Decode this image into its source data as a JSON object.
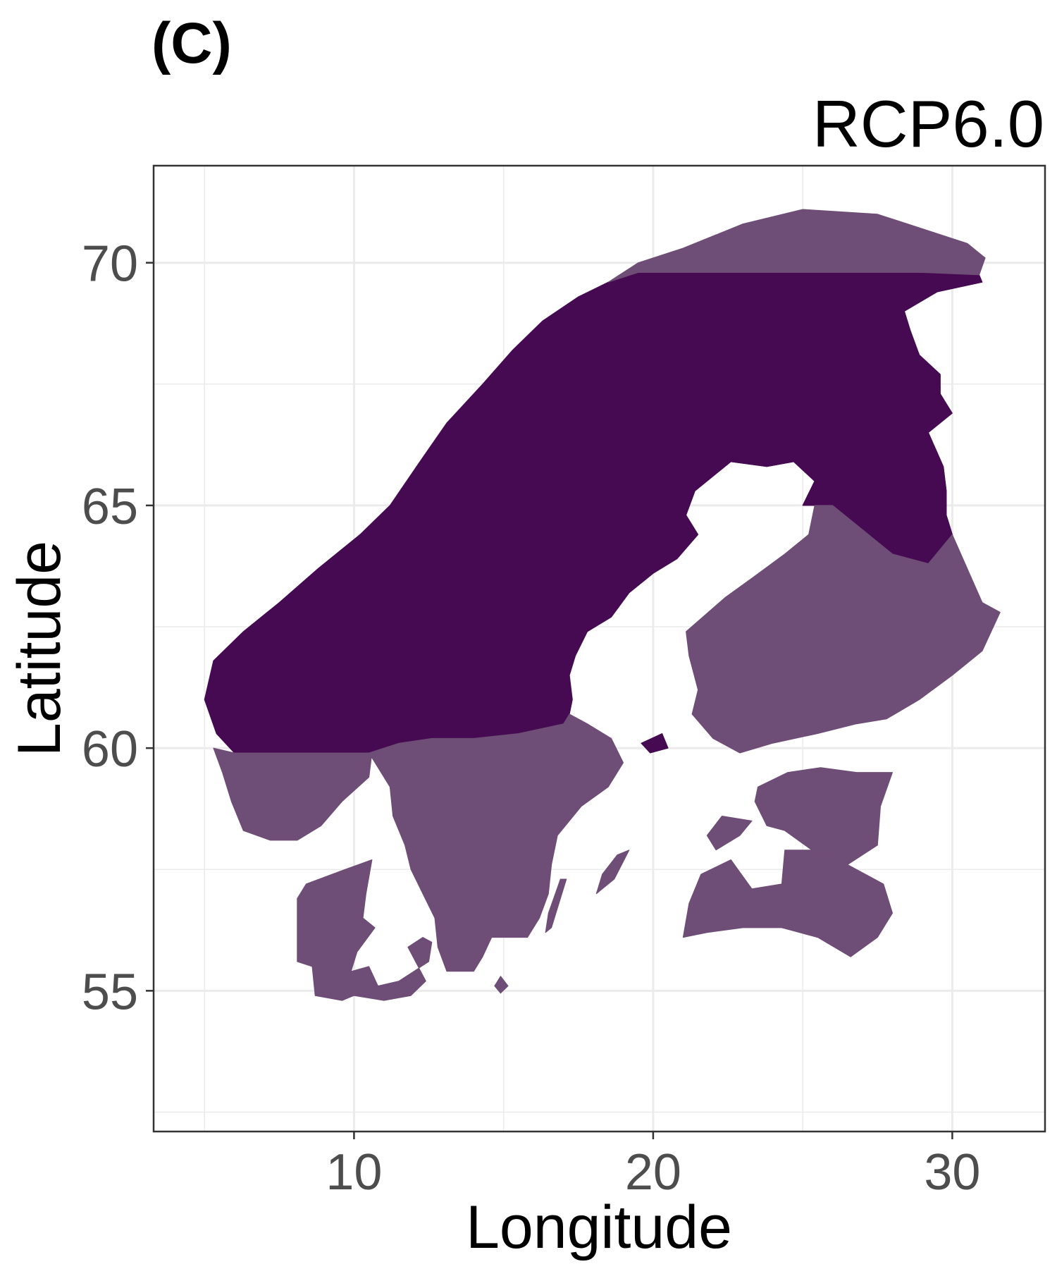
{
  "panel_label": "(C)",
  "title": "RCP6.0",
  "chart_data": {
    "type": "heatmap",
    "title": "RCP6.0",
    "xlabel": "Longitude",
    "ylabel": "Latitude",
    "x_ticks": [
      10,
      20,
      30
    ],
    "y_ticks": [
      55,
      60,
      65,
      70
    ],
    "xlim": [
      3.3,
      33.1
    ],
    "ylim": [
      52.1,
      72
    ],
    "grid": true,
    "legend": "none",
    "colors": {
      "category_dark": "#450a52",
      "category_light": "#6e4d76",
      "grid": "#ebebeb",
      "panel_border": "#333333"
    },
    "region_boundary_latitudes": [
      69.8,
      59.9
    ],
    "regions": [
      {
        "name": "norway_sweden_north",
        "category": "dark"
      },
      {
        "name": "finland_north",
        "category": "dark"
      },
      {
        "name": "norway_south_coast",
        "category": "light"
      },
      {
        "name": "sweden_south",
        "category": "light"
      },
      {
        "name": "finland_south",
        "category": "light"
      },
      {
        "name": "denmark",
        "category": "light"
      },
      {
        "name": "estonia",
        "category": "light"
      },
      {
        "name": "latvia",
        "category": "light"
      },
      {
        "name": "gotland",
        "category": "light"
      },
      {
        "name": "oland",
        "category": "light"
      },
      {
        "name": "bornholm",
        "category": "light"
      },
      {
        "name": "saaremaa",
        "category": "light"
      },
      {
        "name": "aland",
        "category": "dark"
      },
      {
        "name": "finnmark_coast_strip",
        "category": "light"
      }
    ]
  }
}
